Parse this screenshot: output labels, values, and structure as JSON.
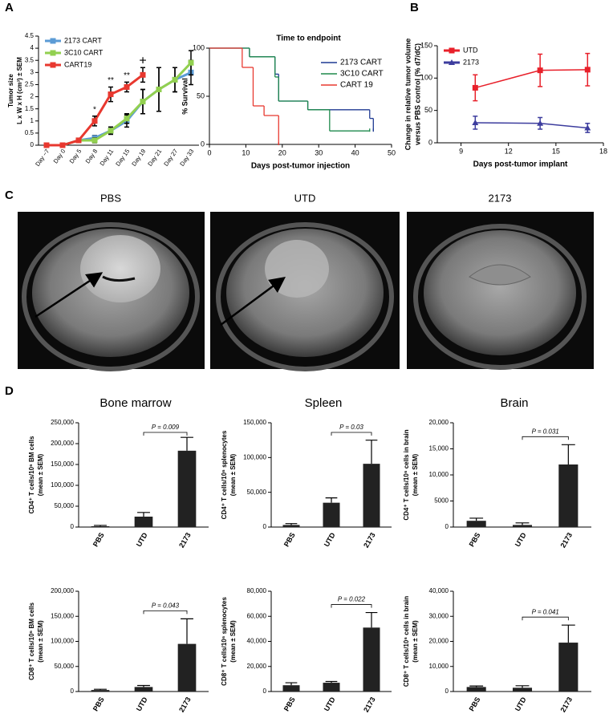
{
  "panels": [
    "A",
    "B",
    "C",
    "D"
  ],
  "mri": {
    "labels": [
      "PBS",
      "UTD",
      "2173"
    ]
  },
  "chart_data": [
    {
      "type": "line",
      "ylabel": [
        "Tumor size",
        "L x W x H (cm³) ± SEM"
      ],
      "categories": [
        "Day −7",
        "Day 0",
        "Day 5",
        "Day 8",
        "Day 11",
        "Day 15",
        "Day 19",
        "Day 21",
        "Day 27",
        "Day 33"
      ],
      "ylim": [
        0,
        4.5
      ],
      "yticks": [
        0,
        0.5,
        1,
        1.5,
        2,
        2.5,
        3,
        3.5,
        4,
        4.5
      ],
      "legend": "upper left",
      "error_color": "#000000",
      "series": [
        {
          "name": "2173 CART",
          "color": "#5b9bd5",
          "values": [
            0,
            0,
            0.2,
            0.3,
            0.6,
            1.0,
            1.8,
            2.3,
            2.7,
            3.0
          ],
          "errors": [
            0.02,
            0.02,
            0.05,
            0.1,
            0.15,
            0.25,
            0.5,
            0.9,
            0.5,
            0.5
          ]
        },
        {
          "name": "3C10 CART",
          "color": "#92d050",
          "values": [
            0,
            0,
            0.2,
            0.2,
            0.6,
            1.1,
            1.8,
            2.3,
            2.7,
            3.4
          ],
          "errors": [
            0.02,
            0.02,
            0.05,
            0.1,
            0.15,
            0.2,
            0.5,
            0.9,
            0.5,
            0.5
          ]
        },
        {
          "name": "CART19",
          "color": "#e8382f",
          "values": [
            0,
            0,
            0.2,
            1.0,
            2.1,
            2.4,
            2.9,
            null,
            null,
            null
          ],
          "errors": [
            0.02,
            0.02,
            0.05,
            0.2,
            0.3,
            0.2,
            0.3,
            null,
            null,
            null
          ]
        }
      ],
      "annotations": [
        {
          "text": "*",
          "x": "Day 8"
        },
        {
          "text": "**",
          "x": "Day 11"
        },
        {
          "text": "**",
          "x": "Day 15"
        },
        {
          "text": "+",
          "x": "Day 19"
        }
      ]
    },
    {
      "type": "step",
      "title": "Time to endpoint",
      "xlabel": "Days post-tumor injection",
      "ylabel": "% Survival",
      "xlim": [
        0,
        50
      ],
      "xticks": [
        0,
        10,
        20,
        30,
        40,
        50
      ],
      "ylim": [
        0,
        100
      ],
      "yticks": [
        0,
        50,
        100
      ],
      "legend": "right",
      "series": [
        {
          "name": "2173 CART",
          "color": "#1f3a93",
          "x": [
            0,
            11,
            18,
            19,
            27,
            44,
            45
          ],
          "values": [
            100,
            91,
            73,
            45,
            36,
            27,
            14
          ]
        },
        {
          "name": "3C10 CART",
          "color": "#1e8a4c",
          "x": [
            0,
            11,
            18,
            19,
            27,
            33,
            44
          ],
          "values": [
            100,
            91,
            70,
            45,
            36,
            14,
            14
          ]
        },
        {
          "name": "CART 19",
          "color": "#e8382f",
          "x": [
            0,
            9,
            12,
            15,
            19
          ],
          "values": [
            100,
            80,
            40,
            30,
            0
          ]
        }
      ]
    },
    {
      "type": "line",
      "xlabel": "Days post-tumor implant",
      "ylabel": [
        "Change in relative tumor volume",
        "versus PBS control (% d7/dC)"
      ],
      "xlim": [
        7.5,
        18
      ],
      "xticks": [
        9,
        12,
        15,
        18
      ],
      "ylim": [
        0,
        150
      ],
      "yticks": [
        0,
        50,
        100,
        150
      ],
      "legend": "upper left",
      "series": [
        {
          "name": "UTD",
          "color": "#e8202a",
          "marker": "square",
          "x": [
            9.9,
            14,
            17
          ],
          "values": [
            85,
            112,
            113
          ],
          "errors": [
            20,
            25,
            25
          ]
        },
        {
          "name": "2173",
          "color": "#3d3d9e",
          "marker": "triangle",
          "x": [
            9.9,
            14,
            17
          ],
          "values": [
            31,
            30,
            23
          ],
          "errors": [
            10,
            9,
            7
          ]
        }
      ]
    },
    {
      "type": "bar",
      "title": "Bone marrow",
      "ylabel": [
        "CD4⁺ T cells/10⁶ BM cells",
        "(mean ± SEM)"
      ],
      "categories": [
        "PBS",
        "UTD",
        "2173"
      ],
      "values": [
        2000,
        25000,
        183000
      ],
      "errors": [
        2000,
        10000,
        32000
      ],
      "color": "#222222",
      "ylim": [
        0,
        250000
      ],
      "yticks": [
        0,
        {
          "value": 50000,
          "label": "50,000"
        },
        {
          "value": 100000,
          "label": "100,000"
        },
        {
          "value": 150000,
          "label": "150,000"
        },
        {
          "value": 200000,
          "label": "200,000"
        },
        {
          "value": 250000,
          "label": "250,000"
        }
      ],
      "annotation": "P = 0.009"
    },
    {
      "type": "bar",
      "title": "Spleen",
      "ylabel": [
        "CD4⁺ T cells/10⁶ splenocytes",
        "(mean ± SEM)"
      ],
      "categories": [
        "PBS",
        "UTD",
        "2173"
      ],
      "values": [
        3000,
        35000,
        91000
      ],
      "errors": [
        2000,
        7000,
        34000
      ],
      "color": "#222222",
      "ylim": [
        0,
        150000
      ],
      "yticks": [
        0,
        {
          "value": 50000,
          "label": "50,000"
        },
        {
          "value": 100000,
          "label": "100,000"
        },
        {
          "value": 150000,
          "label": "150,000"
        }
      ],
      "annotation": "P = 0.03"
    },
    {
      "type": "bar",
      "title": "Brain",
      "ylabel": [
        "CD4⁺ T cells/10⁶ cells in brain",
        "(mean ± SEM)"
      ],
      "categories": [
        "PBS",
        "UTD",
        "2173"
      ],
      "values": [
        1200,
        400,
        12000
      ],
      "errors": [
        500,
        400,
        3800
      ],
      "color": "#222222",
      "ylim": [
        0,
        20000
      ],
      "yticks": [
        0,
        5000,
        {
          "value": 10000,
          "label": "10,000"
        },
        {
          "value": 15000,
          "label": "15,000"
        },
        {
          "value": 20000,
          "label": "20,000"
        }
      ],
      "annotation": "P = 0.031"
    },
    {
      "type": "bar",
      "ylabel": [
        "CD8⁺ T cells/10⁶ BM cells",
        "(mean ± SEM)"
      ],
      "categories": [
        "PBS",
        "UTD",
        "2173"
      ],
      "values": [
        3000,
        9000,
        95000
      ],
      "errors": [
        1500,
        3000,
        50000
      ],
      "color": "#222222",
      "ylim": [
        0,
        200000
      ],
      "yticks": [
        0,
        {
          "value": 50000,
          "label": "50,000"
        },
        {
          "value": 100000,
          "label": "100,000"
        },
        {
          "value": 150000,
          "label": "150,000"
        },
        {
          "value": 200000,
          "label": "200,000"
        }
      ],
      "annotation": "P = 0.043"
    },
    {
      "type": "bar",
      "ylabel": [
        "CD8⁺ T cells/10⁶ splenocytes",
        "(mean ± SEM)"
      ],
      "categories": [
        "PBS",
        "UTD",
        "2173"
      ],
      "values": [
        5000,
        7000,
        51000
      ],
      "errors": [
        2000,
        1000,
        12000
      ],
      "color": "#222222",
      "ylim": [
        0,
        80000
      ],
      "yticks": [
        0,
        {
          "value": 20000,
          "label": "20,000"
        },
        {
          "value": 40000,
          "label": "40,000"
        },
        {
          "value": 60000,
          "label": "60,000"
        },
        {
          "value": 80000,
          "label": "80,000"
        }
      ],
      "annotation": "P = 0.022"
    },
    {
      "type": "bar",
      "ylabel": [
        "CD8⁺ T cells/10⁶ cells in brain",
        "(mean ± SEM)"
      ],
      "categories": [
        "PBS",
        "UTD",
        "2173"
      ],
      "values": [
        1800,
        1500,
        19500
      ],
      "errors": [
        400,
        800,
        7000
      ],
      "color": "#222222",
      "ylim": [
        0,
        40000
      ],
      "yticks": [
        0,
        {
          "value": 10000,
          "label": "10,000"
        },
        {
          "value": 20000,
          "label": "20,000"
        },
        {
          "value": 30000,
          "label": "30,000"
        },
        {
          "value": 40000,
          "label": "40,000"
        }
      ],
      "annotation": "P = 0.041"
    }
  ]
}
